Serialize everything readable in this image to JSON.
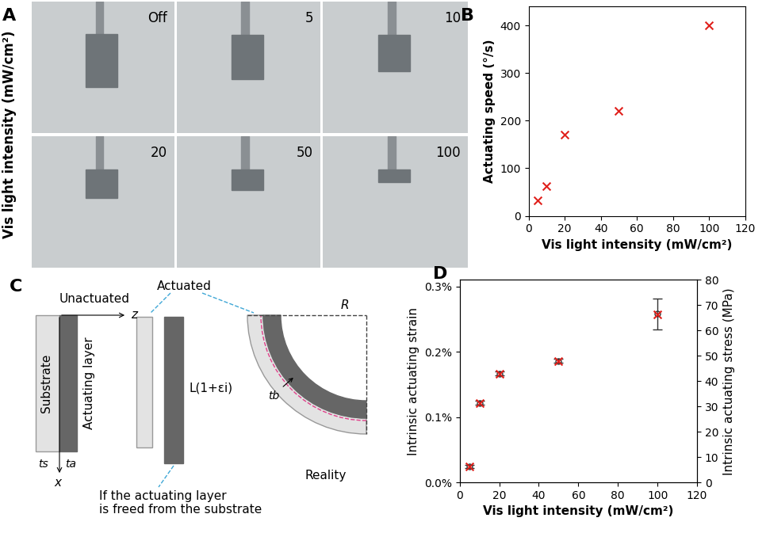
{
  "panel_a": {
    "annotations": [
      "A"
    ],
    "ylabel": "Vis light intensity (mW/cm²)",
    "photos": [
      "Off",
      "5",
      "10",
      "20",
      "50",
      "100"
    ]
  },
  "chart_data": [
    {
      "type": "scatter",
      "annotations": [
        "B"
      ],
      "x": [
        5,
        10,
        20,
        50,
        100
      ],
      "values": [
        32,
        62,
        170,
        220,
        400
      ],
      "color": "#e0201b",
      "marker": "x",
      "xlabel": "Vis light intensity (mW/cm²)",
      "ylabel": "Actuating speed (°/s)",
      "xlim": [
        0,
        120
      ],
      "xticks": [
        0,
        20,
        40,
        60,
        80,
        100,
        120
      ],
      "ylim": [
        0,
        440
      ],
      "yticks": [
        0,
        100,
        200,
        300,
        400
      ]
    },
    {
      "type": "scatter",
      "annotations": [
        "D"
      ],
      "x": [
        5,
        10,
        20,
        50,
        100
      ],
      "series": [
        {
          "color": "#e0201b",
          "marker": "x",
          "values": [
            0.024,
            0.121,
            0.166,
            0.185,
            0.257
          ]
        },
        {
          "axis": "y2",
          "color": "#333333",
          "marker": "o",
          "values": [
            6.3,
            31.4,
            43,
            48,
            66.5
          ],
          "errors": [
            0.5,
            0.8,
            0.8,
            0.8,
            6
          ]
        }
      ],
      "xlabel": "Vis light intensity (mW/cm²)",
      "ylabel": "Intrinsic actuating strain",
      "y2label": "Intrinsic actuating stress (MPa)",
      "xlim": [
        0,
        120
      ],
      "xticks": [
        0,
        20,
        40,
        60,
        80,
        100,
        120
      ],
      "ylim": [
        0,
        0.31
      ],
      "yticks": [
        {
          "value": 0,
          "label": "0.0%"
        },
        {
          "value": 0.1,
          "label": "0.1%"
        },
        {
          "value": 0.2,
          "label": "0.2%"
        },
        {
          "value": 0.3,
          "label": "0.3%"
        }
      ],
      "y2lim": [
        0,
        80
      ],
      "y2ticks": [
        0,
        10,
        20,
        30,
        40,
        50,
        60,
        70,
        80
      ]
    }
  ],
  "panel_c": {
    "annotations": [
      "C"
    ],
    "texts": {
      "unactuated": "Unactuated",
      "z": "z",
      "x": "x",
      "substrate": "Substrate",
      "actuating_layer": "Actuating layer",
      "ts": "ts",
      "ta": "ta",
      "actuated": "Actuated",
      "length": "L(1+εi)",
      "freed": "If the actuating layer\nis freed from the substrate",
      "R": "R",
      "tb": "tb",
      "reality": "Reality"
    }
  }
}
